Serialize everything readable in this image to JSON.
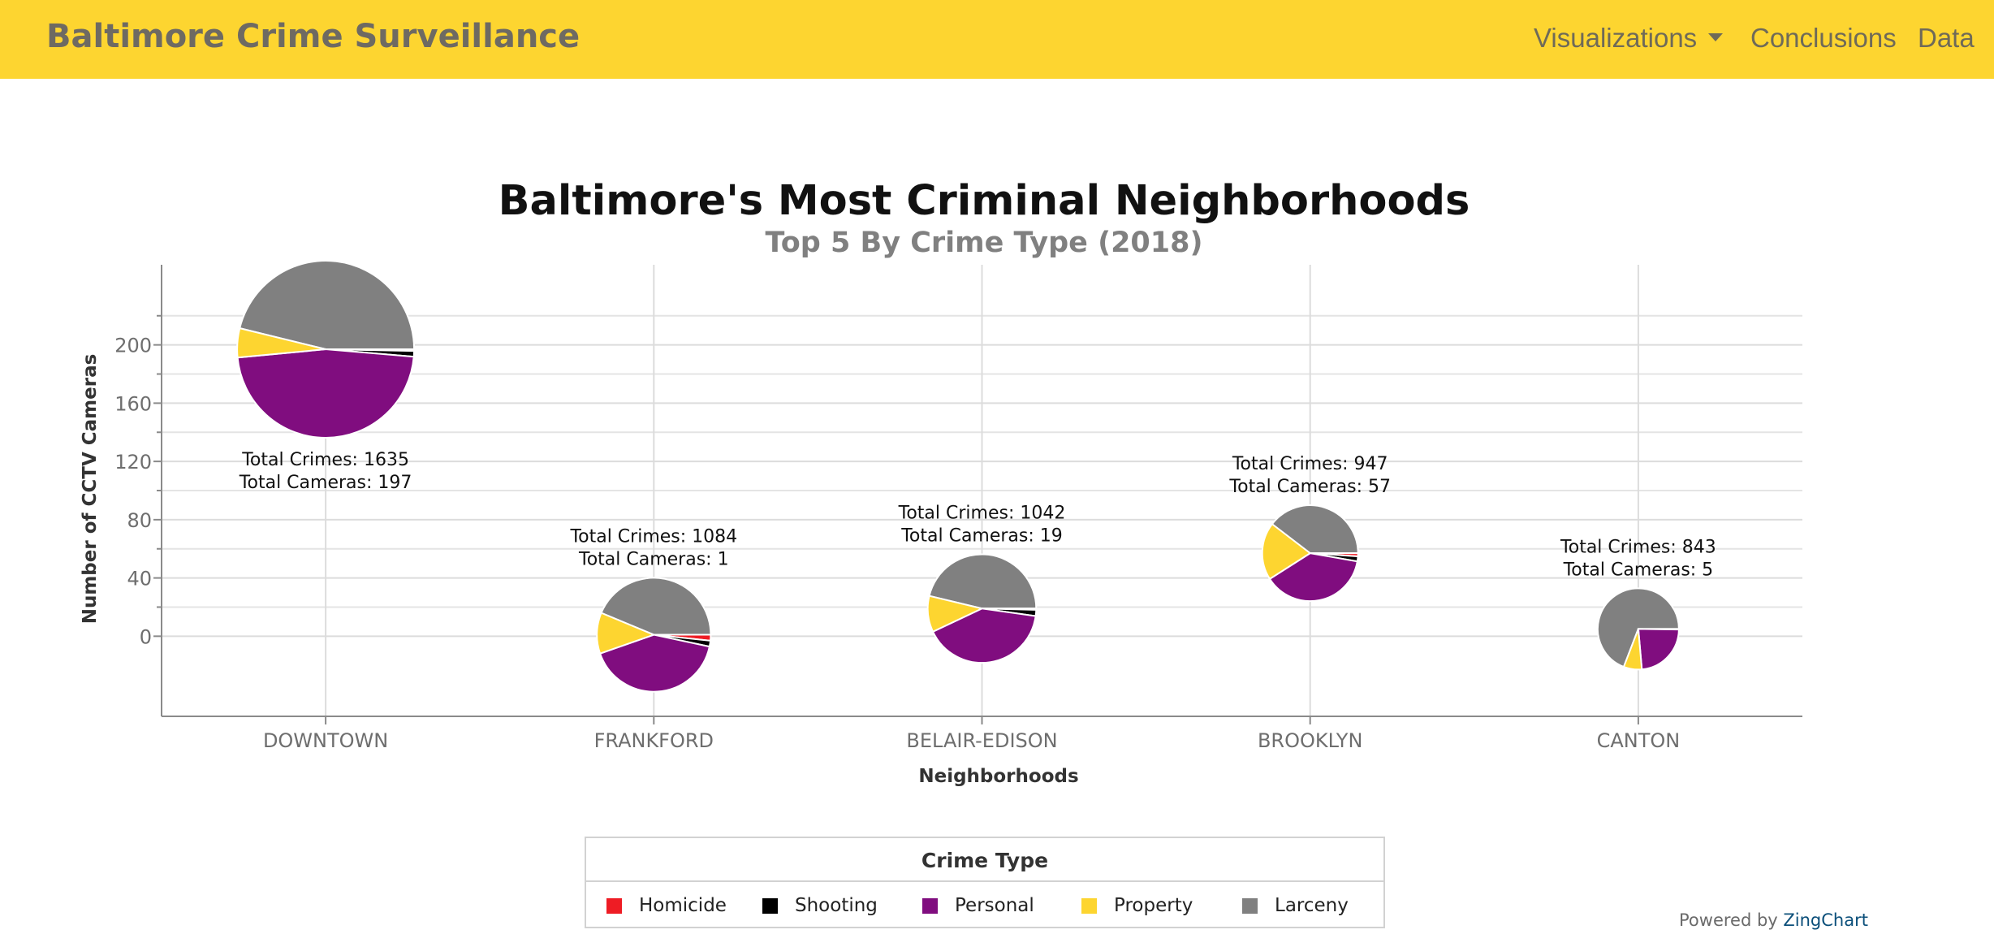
{
  "navbar": {
    "brand": "Baltimore Crime Surveillance",
    "items": [
      {
        "label": "Visualizations",
        "dropdown": true
      },
      {
        "label": "Conclusions"
      },
      {
        "label": "Data"
      }
    ],
    "background": "#fdd530"
  },
  "chart_data": {
    "type": "pie",
    "title": "Baltimore's Most Criminal Neighborhoods",
    "subtitle": "Top 5 By Crime Type (2018)",
    "xlabel": "Neighborhoods",
    "ylabel": "Number of CCTV Cameras",
    "categories": [
      "DOWNTOWN",
      "FRANKFORD",
      "BELAIR-EDISON",
      "BROOKLYN",
      "CANTON"
    ],
    "ylim": [
      -55,
      255
    ],
    "yticks": [
      0,
      40,
      80,
      120,
      160,
      200
    ],
    "grid": true,
    "legend_title": "Crime Type",
    "legend_position": "bottom",
    "series": [
      {
        "name": "Homicide",
        "color": "#ee1c24"
      },
      {
        "name": "Shooting",
        "color": "#000000"
      },
      {
        "name": "Personal",
        "color": "#800d7f"
      },
      {
        "name": "Property",
        "color": "#fdd530"
      },
      {
        "name": "Larceny",
        "color": "#808080"
      }
    ],
    "neighborhoods": [
      {
        "name": "DOWNTOWN",
        "cameras": 197,
        "total_crimes": 1635,
        "label_line1": "Total Crimes: 1635",
        "label_line2": "Total Cameras: 197",
        "label_position": "below",
        "values": {
          "Homicide": 5,
          "Shooting": 17,
          "Personal": 771,
          "Property": 87,
          "Larceny": 755
        }
      },
      {
        "name": "FRANKFORD",
        "cameras": 1,
        "total_crimes": 1084,
        "label_line1": "Total Crimes: 1084",
        "label_line2": "Total Cameras: 1",
        "label_position": "above",
        "values": {
          "Homicide": 18,
          "Shooting": 18,
          "Personal": 448,
          "Property": 126,
          "Larceny": 474
        }
      },
      {
        "name": "BELAIR-EDISON",
        "cameras": 19,
        "total_crimes": 1042,
        "label_line1": "Total Crimes: 1042",
        "label_line2": "Total Cameras: 19",
        "label_position": "above",
        "values": {
          "Homicide": 4,
          "Shooting": 19,
          "Personal": 425,
          "Property": 112,
          "Larceny": 482
        }
      },
      {
        "name": "BROOKLYN",
        "cameras": 57,
        "total_crimes": 947,
        "label_line1": "Total Crimes: 947",
        "label_line2": "Total Cameras: 57",
        "label_position": "above",
        "values": {
          "Homicide": 10,
          "Shooting": 16,
          "Personal": 362,
          "Property": 184,
          "Larceny": 375
        }
      },
      {
        "name": "CANTON",
        "cameras": 5,
        "total_crimes": 843,
        "label_line1": "Total Crimes: 843",
        "label_line2": "Total Cameras: 5",
        "label_position": "above",
        "values": {
          "Homicide": 0,
          "Shooting": 2,
          "Personal": 197,
          "Property": 61,
          "Larceny": 583
        }
      }
    ]
  },
  "footer": {
    "powered_prefix": "Powered by",
    "powered_brand": "ZingChart"
  }
}
